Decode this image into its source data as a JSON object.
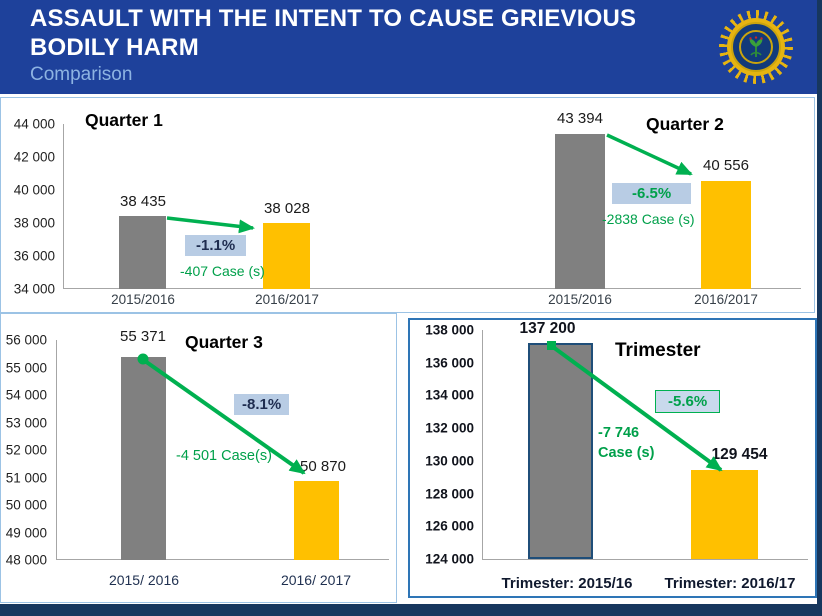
{
  "header": {
    "title": "ASSAULT WITH THE INTENT TO CAUSE GRIEVIOUS BODILY HARM",
    "subtitle": "Comparison",
    "badge_icon": "saps-badge-icon"
  },
  "colors": {
    "header_bg": "#1e419b",
    "subtitle_text": "#8db3e2",
    "bar_previous_year": "#808080",
    "bar_current_year": "#ffc000",
    "decline_green": "#00b050",
    "chip_bg": "#b8cce4",
    "panel_border": "#9cc3e5",
    "trimester_panel_border": "#2e75b6",
    "trimester_bar_border": "#1f4e79",
    "slide_edge": "#17375e"
  },
  "chart_data": [
    {
      "type": "bar",
      "title": "Quarter 1",
      "categories": [
        "2015/2016",
        "2016/2017"
      ],
      "values": [
        38435,
        38028
      ],
      "value_labels": [
        "38 435",
        "38 028"
      ],
      "ylim": [
        34000,
        44000
      ],
      "yticks": [
        "44 000",
        "42 000",
        "40 000",
        "38 000",
        "36 000",
        "34 000"
      ],
      "pct_change": "-1.1%",
      "cases_change": "-407  Case (s)",
      "grid": false,
      "legend": false
    },
    {
      "type": "bar",
      "title": "Quarter 2",
      "categories": [
        "2015/2016",
        "2016/2017"
      ],
      "values": [
        43394,
        40556
      ],
      "value_labels": [
        "43 394",
        "40 556"
      ],
      "ylim": [
        34000,
        44000
      ],
      "yticks": [
        "44 000",
        "42 000",
        "40 000",
        "38 000",
        "36 000",
        "34 000"
      ],
      "pct_change": "-6.5%",
      "cases_change": "-2838  Case (s)",
      "grid": false,
      "legend": false,
      "shares_axis_with": "Quarter 1"
    },
    {
      "type": "bar",
      "title": "Quarter 3",
      "categories": [
        "2015/ 2016",
        "2016/ 2017"
      ],
      "values": [
        55371,
        50870
      ],
      "value_labels": [
        "55 371",
        "50 870"
      ],
      "ylim": [
        48000,
        56000
      ],
      "yticks": [
        "56 000",
        "55 000",
        "54 000",
        "53 000",
        "52 000",
        "51 000",
        "50 000",
        "49 000",
        "48 000"
      ],
      "pct_change": "-8.1%",
      "cases_change": "-4 501 Case(s)",
      "grid": false,
      "legend": false
    },
    {
      "type": "bar",
      "title": "Trimester",
      "categories": [
        "Trimester: 2015/16",
        "Trimester: 2016/17"
      ],
      "values": [
        137200,
        129454
      ],
      "value_labels": [
        "137 200",
        "129 454"
      ],
      "ylim": [
        124000,
        138000
      ],
      "yticks": [
        "138 000",
        "136 000",
        "134 000",
        "132 000",
        "130 000",
        "128 000",
        "126 000",
        "124 000"
      ],
      "pct_change": "-5.6%",
      "cases_change_lines": [
        "-7 746",
        "Case (s)"
      ],
      "grid": false,
      "legend": false
    }
  ]
}
